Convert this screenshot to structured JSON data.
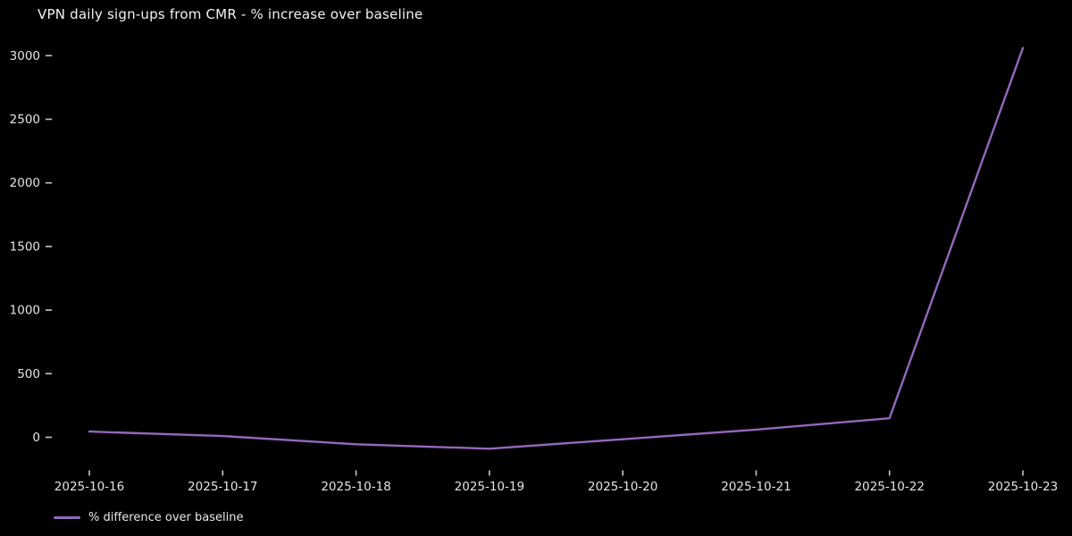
{
  "chart": {
    "title": "VPN daily sign-ups from CMR - % increase over baseline",
    "legend_label": "% difference over baseline",
    "line_color": "#9467bd",
    "background_color": "#000000",
    "text_color": "#e8e8e8"
  },
  "chart_data": {
    "type": "line",
    "title": "VPN daily sign-ups from CMR - % increase over baseline",
    "x": [
      "2025-10-16",
      "2025-10-17",
      "2025-10-18",
      "2025-10-19",
      "2025-10-20",
      "2025-10-21",
      "2025-10-22",
      "2025-10-23"
    ],
    "series": [
      {
        "name": "% difference over baseline",
        "values": [
          45,
          10,
          -55,
          -90,
          -15,
          60,
          150,
          3060
        ],
        "color": "#9467bd"
      }
    ],
    "xlabel": "",
    "ylabel": "",
    "yticks": [
      0,
      500,
      1000,
      1500,
      2000,
      2500,
      3000
    ],
    "ylim": [
      -245,
      3215
    ],
    "grid": false,
    "legend_position": "lower-left-outside",
    "background": "#000000"
  }
}
